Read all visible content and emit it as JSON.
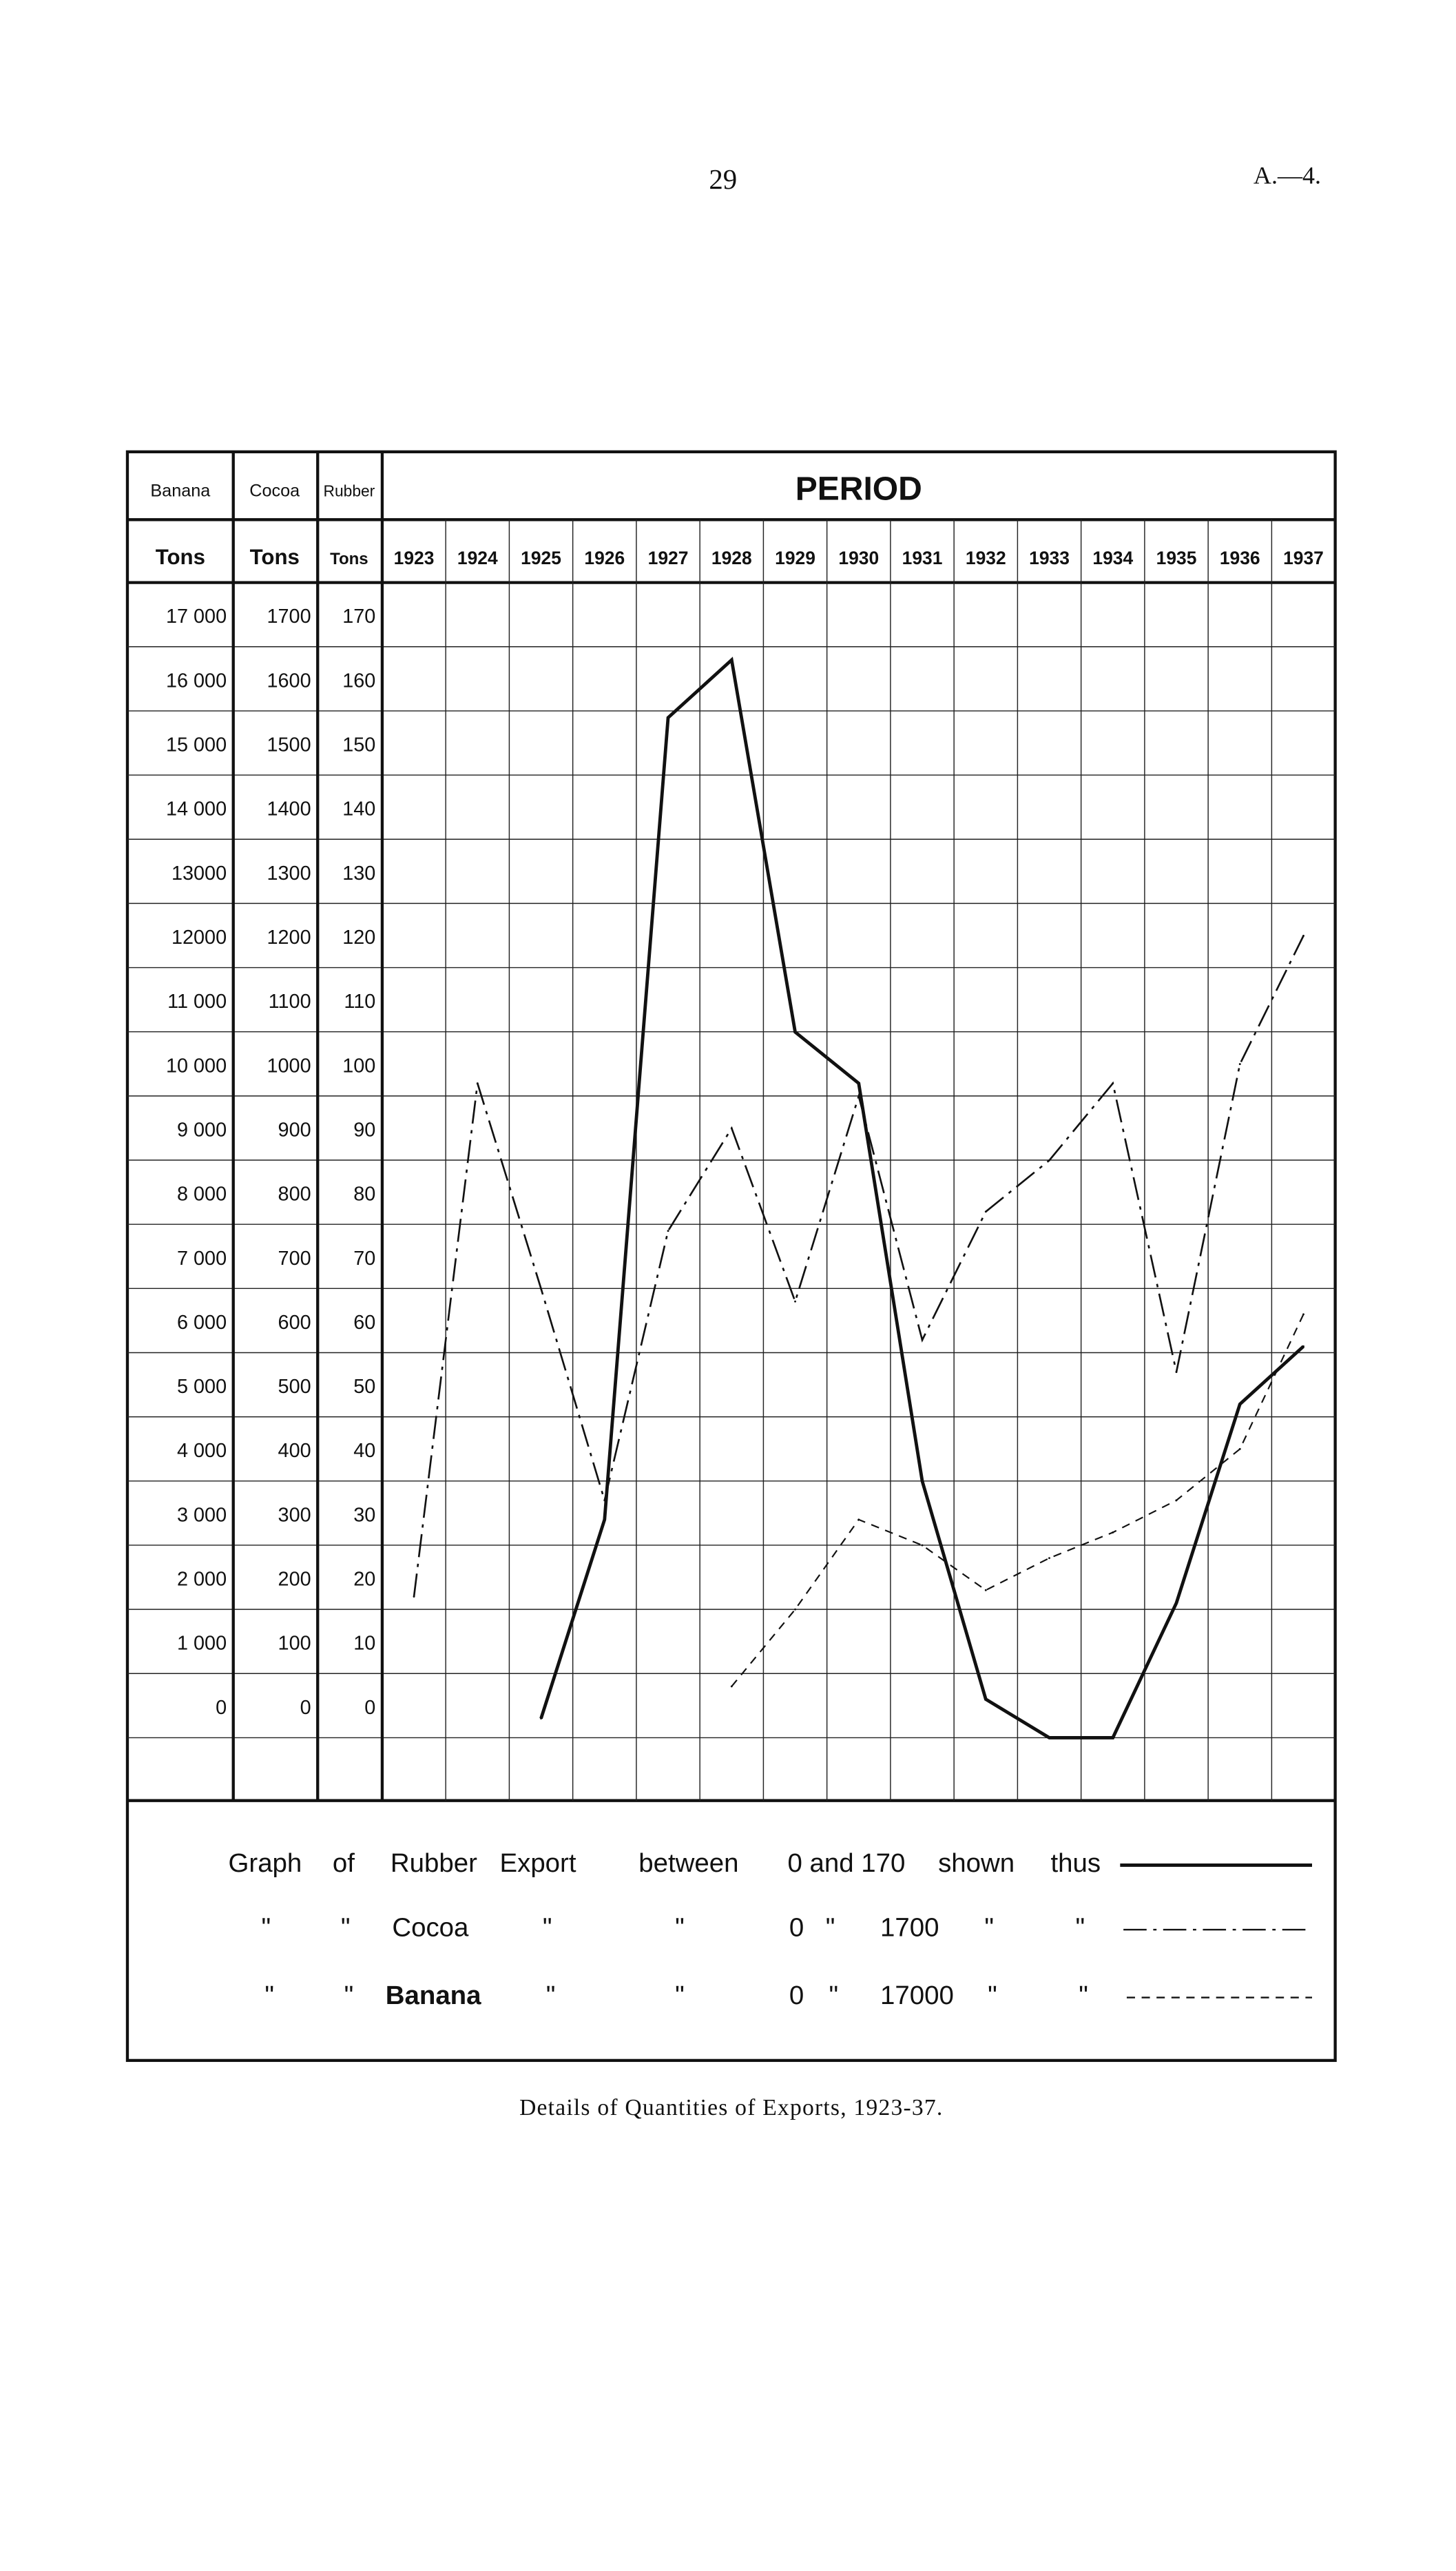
{
  "page": {
    "number": "29",
    "reference": "A.—4."
  },
  "caption": "Details of Quantities of Exports, 1923-37.",
  "chart_data": {
    "type": "line",
    "title": "",
    "header": {
      "period_label": "PERIOD",
      "axis_names": [
        "Banana",
        "Cocoa",
        "Rubber"
      ],
      "unit_labels": [
        "Tons",
        "Tons",
        "Tons"
      ]
    },
    "categories": [
      "1923",
      "1924",
      "1925",
      "1926",
      "1927",
      "1928",
      "1929",
      "1930",
      "1931",
      "1932",
      "1933",
      "1934",
      "1935",
      "1936",
      "1937"
    ],
    "y_axes": [
      {
        "name": "Banana",
        "unit": "Tons",
        "range": [
          0,
          17000
        ],
        "ticks": [
          "17 000",
          "16 000",
          "15 000",
          "14 000",
          "13000",
          "12000",
          "11 000",
          "10 000",
          "9 000",
          "8 000",
          "7 000",
          "6 000",
          "5 000",
          "4 000",
          "3 000",
          "2 000",
          "1 000",
          "0"
        ]
      },
      {
        "name": "Cocoa",
        "unit": "Tons",
        "range": [
          0,
          1700
        ],
        "ticks": [
          "1700",
          "1600",
          "1500",
          "1400",
          "1300",
          "1200",
          "1100",
          "1000",
          "900",
          "800",
          "700",
          "600",
          "500",
          "400",
          "300",
          "200",
          "100",
          "0"
        ]
      },
      {
        "name": "Rubber",
        "unit": "Tons",
        "range": [
          0,
          170
        ],
        "ticks": [
          "170",
          "160",
          "150",
          "140",
          "130",
          "120",
          "110",
          "100",
          "90",
          "80",
          "70",
          "60",
          "50",
          "40",
          "30",
          "20",
          "10",
          "0"
        ]
      }
    ],
    "grid": true,
    "series": [
      {
        "name": "Rubber",
        "axis": "Rubber",
        "style": "solid",
        "values": [
          null,
          null,
          3,
          34,
          159,
          168,
          110,
          102,
          40,
          6,
          0,
          0,
          21,
          52,
          61
        ]
      },
      {
        "name": "Cocoa",
        "axis": "Cocoa",
        "style": "dash-dot",
        "values": [
          220,
          1020,
          700,
          370,
          790,
          950,
          680,
          1000,
          620,
          820,
          900,
          1020,
          570,
          1050,
          1250
        ]
      },
      {
        "name": "Banana",
        "axis": "Banana",
        "style": "dashed",
        "values": [
          null,
          null,
          null,
          null,
          null,
          800,
          2000,
          3400,
          3000,
          2300,
          2800,
          3200,
          3700,
          4500,
          6600
        ]
      }
    ],
    "legend": {
      "placement": "bottom",
      "rows": [
        [
          "Graph",
          "of",
          "Rubber",
          "Export",
          "between",
          "0 and 170",
          "shown",
          "thus"
        ],
        [
          "\"",
          "\"",
          "Cocoa",
          "\"",
          "\"",
          "0",
          "\"",
          "1700",
          "\"",
          "\""
        ],
        [
          "\"",
          "\"",
          "Banana",
          "\"",
          "\"",
          "0",
          "\"",
          "17000",
          "\"",
          "\""
        ]
      ]
    }
  }
}
